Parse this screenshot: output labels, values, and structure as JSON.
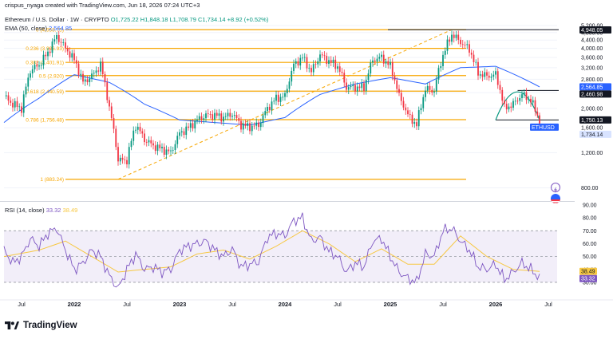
{
  "header": {
    "author_line": "crispus_nyaga created with TradingView.com, Jun 18, 2026 07:24 UTC+3",
    "symbol": "Ethereum / U.S. Dollar · 1W · CRYPTO",
    "ohlc": "O1,725.22 H1,848.18 L1,708.79 C1,734.14 +8.92 (+0.52%)",
    "ema_label": "EMA (50, close)",
    "ema_value": "2,564.85",
    "rsi_label": "RSI (14, close)",
    "rsi_value": "33.32",
    "rsi_ma_value": "38.49"
  },
  "brand": "TradingView",
  "colors": {
    "up": "#089981",
    "down": "#f23645",
    "fib": "#f7a600",
    "ema": "#2962ff",
    "rsi": "#7e57c2",
    "rsi_ma": "#f7c843",
    "rsi_band": "#ede7f6"
  },
  "chart_data": [
    {
      "type": "candlestick",
      "title": "Ethereum / U.S. Dollar · 1W · CRYPTO",
      "y_scale": "log",
      "ylim": [
        700,
        5600
      ],
      "y_ticks": [
        "5,200.00",
        "4,800.00",
        "4,400.00",
        "4,000.00",
        "3,600.00",
        "3,200.00",
        "2,800.00",
        "2,400.00",
        "2,000.00",
        "1,600.00",
        "1,200.00",
        "800.00"
      ],
      "x_ticks": [
        "Jul",
        "2022",
        "Jul",
        "2023",
        "Jul",
        "2024",
        "Jul",
        "2025",
        "Jul",
        "2026",
        "Jul"
      ],
      "x_range": [
        "2021-05",
        "2026-08"
      ],
      "price_labels": [
        {
          "label": "4,948.05",
          "value": 4948.05
        },
        {
          "label": "2,564.85",
          "value": 2564.85
        },
        {
          "label": "2,460.98",
          "value": 2460.98
        },
        {
          "label": "1,750.13",
          "value": 1750.13
        },
        {
          "label": "ETHUSD",
          "value": 1734.14
        },
        {
          "label": "1,734.14",
          "value": 1734.14
        }
      ],
      "fibonacci": [
        {
          "label": "0 (4,958.75)",
          "value": 4958.75
        },
        {
          "label": "0.236 (3,996.93)",
          "value": 3996.93
        },
        {
          "label": "0.382 (3,401.91)",
          "value": 3401.91
        },
        {
          "label": "0.5 (2,920)",
          "value": 2920
        },
        {
          "label": "0.618 (2,440.59)",
          "value": 2440.59
        },
        {
          "label": "0.786 (1,756.48)",
          "value": 1756.48
        },
        {
          "label": "1 (883.24)",
          "value": 883.24
        }
      ],
      "price_path": [
        [
          "2021-05",
          2300
        ],
        [
          "2021-06",
          2100
        ],
        [
          "2021-07",
          2000
        ],
        [
          "2021-08",
          3100
        ],
        [
          "2021-09",
          3300
        ],
        [
          "2021-10",
          3800
        ],
        [
          "2021-11",
          4600
        ],
        [
          "2021-12",
          4000
        ],
        [
          "2022-01",
          3500
        ],
        [
          "2022-02",
          2700
        ],
        [
          "2022-03",
          2900
        ],
        [
          "2022-04",
          3300
        ],
        [
          "2022-05",
          2000
        ],
        [
          "2022-06",
          1100
        ],
        [
          "2022-07",
          1100
        ],
        [
          "2022-08",
          1650
        ],
        [
          "2022-09",
          1400
        ],
        [
          "2022-10",
          1300
        ],
        [
          "2022-11",
          1250
        ],
        [
          "2022-12",
          1200
        ],
        [
          "2023-01",
          1500
        ],
        [
          "2023-02",
          1600
        ],
        [
          "2023-03",
          1750
        ],
        [
          "2023-04",
          1850
        ],
        [
          "2023-05",
          1850
        ],
        [
          "2023-06",
          1800
        ],
        [
          "2023-07",
          1880
        ],
        [
          "2023-08",
          1650
        ],
        [
          "2023-09",
          1620
        ],
        [
          "2023-10",
          1650
        ],
        [
          "2023-11",
          2000
        ],
        [
          "2023-12",
          2250
        ],
        [
          "2024-01",
          2300
        ],
        [
          "2024-02",
          3300
        ],
        [
          "2024-03",
          3600
        ],
        [
          "2024-04",
          3050
        ],
        [
          "2024-05",
          3700
        ],
        [
          "2024-06",
          3450
        ],
        [
          "2024-07",
          3250
        ],
        [
          "2024-08",
          2550
        ],
        [
          "2024-09",
          2550
        ],
        [
          "2024-10",
          2550
        ],
        [
          "2024-11",
          3500
        ],
        [
          "2024-12",
          3600
        ],
        [
          "2025-01",
          3250
        ],
        [
          "2025-02",
          2300
        ],
        [
          "2025-03",
          1850
        ],
        [
          "2025-04",
          1650
        ],
        [
          "2025-05",
          2500
        ],
        [
          "2025-06",
          2450
        ],
        [
          "2025-07",
          3700
        ],
        [
          "2025-08",
          4700
        ],
        [
          "2025-09",
          4300
        ],
        [
          "2025-10",
          3950
        ],
        [
          "2025-11",
          3000
        ],
        [
          "2025-12",
          2900
        ],
        [
          "2026-01",
          2950
        ],
        [
          "2026-02",
          2000
        ],
        [
          "2026-03",
          2100
        ],
        [
          "2026-04",
          2350
        ],
        [
          "2026-05",
          2200
        ],
        [
          "2026-06",
          1734.14
        ]
      ],
      "ema_path": [
        [
          "2021-05",
          1700
        ],
        [
          "2021-09",
          2250
        ],
        [
          "2022-01",
          2950
        ],
        [
          "2022-05",
          2700
        ],
        [
          "2022-09",
          2100
        ],
        [
          "2023-01",
          1750
        ],
        [
          "2023-05",
          1700
        ],
        [
          "2023-09",
          1650
        ],
        [
          "2024-01",
          1800
        ],
        [
          "2024-05",
          2350
        ],
        [
          "2024-09",
          2650
        ],
        [
          "2025-01",
          2850
        ],
        [
          "2025-05",
          2650
        ],
        [
          "2025-09",
          3200
        ],
        [
          "2026-01",
          3250
        ],
        [
          "2026-06",
          2564.85
        ]
      ],
      "patterns": [
        {
          "type": "rising-dashed-trendline",
          "from": [
            "2022-06",
            883.24
          ],
          "to": [
            "2025-08",
            4958.75
          ]
        },
        {
          "type": "rounded-top",
          "from": [
            "2026-01",
            1750.13
          ],
          "to": [
            "2026-06",
            1750.13
          ],
          "peak": 2460.98
        }
      ]
    },
    {
      "type": "line",
      "title": "RSI (14, close)",
      "ylim": [
        25,
        90
      ],
      "y_ticks": [
        "90.00",
        "80.00",
        "70.00",
        "60.00",
        "50.00",
        "40.00",
        "30.00"
      ],
      "levels": [
        70,
        50,
        30
      ],
      "series": [
        {
          "name": "RSI",
          "values": [
            [
              "2021-05",
              55
            ],
            [
              "2021-06",
              45
            ],
            [
              "2021-07",
              50
            ],
            [
              "2021-08",
              64
            ],
            [
              "2021-09",
              58
            ],
            [
              "2021-10",
              68
            ],
            [
              "2021-11",
              72
            ],
            [
              "2021-12",
              55
            ],
            [
              "2022-01",
              40
            ],
            [
              "2022-02",
              45
            ],
            [
              "2022-03",
              55
            ],
            [
              "2022-04",
              50
            ],
            [
              "2022-05",
              35
            ],
            [
              "2022-06",
              25
            ],
            [
              "2022-07",
              40
            ],
            [
              "2022-08",
              52
            ],
            [
              "2022-09",
              40
            ],
            [
              "2022-10",
              42
            ],
            [
              "2022-11",
              38
            ],
            [
              "2022-12",
              40
            ],
            [
              "2023-01",
              55
            ],
            [
              "2023-02",
              58
            ],
            [
              "2023-03",
              60
            ],
            [
              "2023-04",
              62
            ],
            [
              "2023-05",
              55
            ],
            [
              "2023-06",
              50
            ],
            [
              "2023-07",
              56
            ],
            [
              "2023-08",
              42
            ],
            [
              "2023-09",
              44
            ],
            [
              "2023-10",
              46
            ],
            [
              "2023-11",
              65
            ],
            [
              "2023-12",
              68
            ],
            [
              "2024-01",
              66
            ],
            [
              "2024-02",
              78
            ],
            [
              "2024-03",
              80
            ],
            [
              "2024-04",
              62
            ],
            [
              "2024-05",
              65
            ],
            [
              "2024-06",
              54
            ],
            [
              "2024-07",
              50
            ],
            [
              "2024-08",
              38
            ],
            [
              "2024-09",
              45
            ],
            [
              "2024-10",
              42
            ],
            [
              "2024-11",
              62
            ],
            [
              "2024-12",
              64
            ],
            [
              "2025-01",
              50
            ],
            [
              "2025-02",
              38
            ],
            [
              "2025-03",
              33
            ],
            [
              "2025-04",
              30
            ],
            [
              "2025-05",
              52
            ],
            [
              "2025-06",
              50
            ],
            [
              "2025-07",
              70
            ],
            [
              "2025-08",
              72
            ],
            [
              "2025-09",
              62
            ],
            [
              "2025-10",
              55
            ],
            [
              "2025-11",
              42
            ],
            [
              "2025-12",
              40
            ],
            [
              "2026-01",
              44
            ],
            [
              "2026-02",
              32
            ],
            [
              "2026-03",
              38
            ],
            [
              "2026-04",
              45
            ],
            [
              "2026-05",
              40
            ],
            [
              "2026-06",
              33.32
            ]
          ]
        },
        {
          "name": "RSI-based MA",
          "values": [
            [
              "2021-05",
              50
            ],
            [
              "2021-09",
              55
            ],
            [
              "2021-12",
              62
            ],
            [
              "2022-03",
              50
            ],
            [
              "2022-06",
              38
            ],
            [
              "2022-09",
              40
            ],
            [
              "2022-12",
              42
            ],
            [
              "2023-03",
              52
            ],
            [
              "2023-06",
              55
            ],
            [
              "2023-09",
              48
            ],
            [
              "2023-12",
              58
            ],
            [
              "2024-03",
              70
            ],
            [
              "2024-06",
              60
            ],
            [
              "2024-09",
              46
            ],
            [
              "2024-12",
              56
            ],
            [
              "2025-03",
              44
            ],
            [
              "2025-06",
              44
            ],
            [
              "2025-09",
              66
            ],
            [
              "2025-12",
              50
            ],
            [
              "2026-03",
              40
            ],
            [
              "2026-06",
              38.49
            ]
          ]
        }
      ]
    }
  ]
}
